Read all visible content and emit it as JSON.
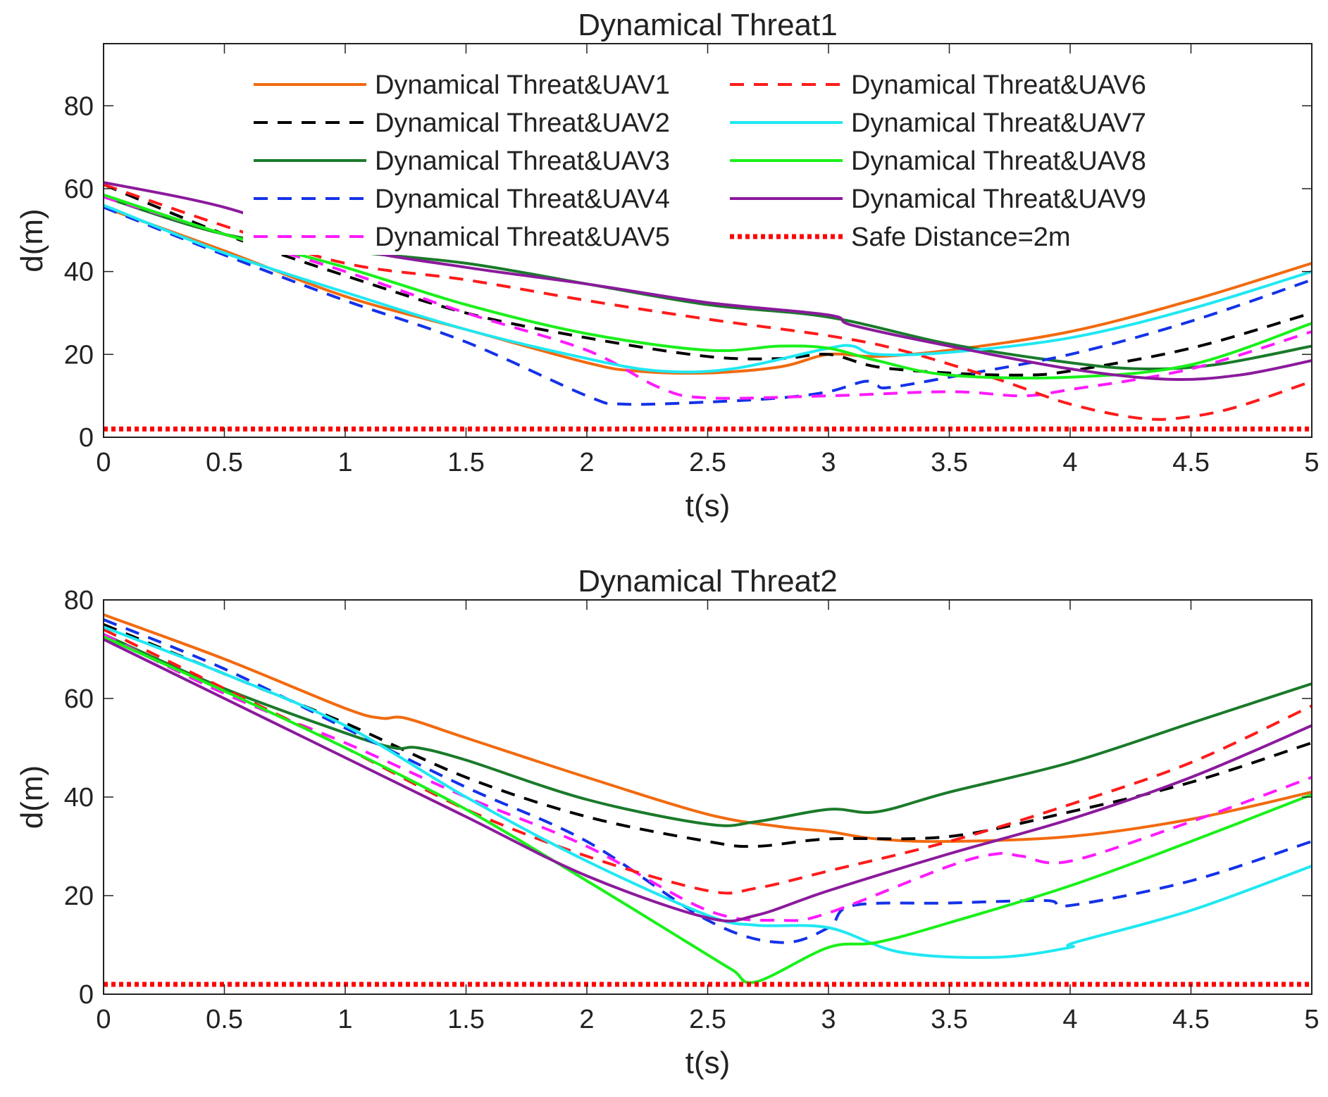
{
  "chart_data": [
    {
      "type": "line",
      "title": "Dynamical Threat1",
      "xlabel": "t(s)",
      "ylabel": "d(m)",
      "xlim": [
        0,
        5
      ],
      "ylim": [
        0,
        95
      ],
      "xticks": [
        0,
        0.5,
        1,
        1.5,
        2,
        2.5,
        3,
        3.5,
        4,
        4.5,
        5
      ],
      "xtick_labels": [
        "0",
        "0.5",
        "1",
        "1.5",
        "2",
        "2.5",
        "3",
        "3.5",
        "4",
        "4.5",
        "5"
      ],
      "yticks": [
        0,
        20,
        40,
        60,
        80
      ],
      "ytick_labels": [
        "0",
        "20",
        "40",
        "60",
        "80"
      ],
      "legend": {
        "location": "top-center",
        "columns": 2,
        "entries": [
          "Dynamical Threat&UAV1",
          "Dynamical Threat&UAV2",
          "Dynamical Threat&UAV3",
          "Dynamical Threat&UAV4",
          "Dynamical Threat&UAV5",
          "Dynamical Threat&UAV6",
          "Dynamical Threat&UAV7",
          "Dynamical Threat&UAV8",
          "Dynamical Threat&UAV9",
          "Safe Distance=2m"
        ]
      },
      "series": [
        {
          "name": "Dynamical Threat&UAV1",
          "color": "#f26a0f",
          "style": "solid",
          "x": [
            0,
            0.5,
            1,
            1.5,
            2,
            2.2,
            2.5,
            2.8,
            3.0,
            3.2,
            3.5,
            4.0,
            4.5,
            5
          ],
          "y": [
            55.5,
            45,
            34,
            26,
            18,
            16,
            15.5,
            17,
            20,
            19.5,
            21,
            25.5,
            33,
            42
          ]
        },
        {
          "name": "Dynamical Threat&UAV2",
          "color": "#000000",
          "style": "dashed",
          "x": [
            0,
            0.5,
            1,
            1.5,
            2,
            2.5,
            2.8,
            3.0,
            3.2,
            3.5,
            3.8,
            4.0,
            4.5,
            5
          ],
          "y": [
            61,
            49,
            39,
            30,
            24,
            19.5,
            19,
            20,
            17,
            15.5,
            15,
            16,
            21.5,
            30
          ]
        },
        {
          "name": "Dynamical Threat&UAV3",
          "color": "#1a7a2a",
          "style": "solid",
          "x": [
            0,
            0.5,
            1,
            1.5,
            2,
            2.5,
            3.0,
            3.5,
            4.0,
            4.3,
            4.6,
            5
          ],
          "y": [
            58,
            49,
            45,
            42,
            37,
            32,
            29,
            22.5,
            18,
            16.5,
            17.5,
            22
          ]
        },
        {
          "name": "Dynamical Threat&UAV4",
          "color": "#1432e8",
          "style": "dashed",
          "x": [
            0,
            0.5,
            1,
            1.5,
            2,
            2.15,
            2.5,
            2.8,
            3.0,
            3.15,
            3.2,
            3.25,
            3.5,
            4.0,
            4.5,
            5
          ],
          "y": [
            55.5,
            44,
            33,
            23,
            10,
            8,
            8.5,
            9.5,
            11,
            13.5,
            12.5,
            12,
            14.5,
            20,
            28,
            38
          ]
        },
        {
          "name": "Dynamical Threat&UAV5",
          "color": "#ff1aff",
          "style": "dashed",
          "x": [
            0,
            0.5,
            1,
            1.5,
            2,
            2.3,
            2.5,
            3.0,
            3.5,
            3.8,
            4.0,
            4.5,
            5
          ],
          "y": [
            58,
            49,
            40,
            30,
            21,
            12,
            9.5,
            10,
            11,
            10,
            11.5,
            16.5,
            25.5
          ]
        },
        {
          "name": "Dynamical Threat&UAV6",
          "color": "#ff1a1a",
          "style": "dashed",
          "x": [
            0,
            0.5,
            1,
            1.5,
            2,
            2.5,
            3.0,
            3.3,
            3.7,
            4.0,
            4.3,
            4.5,
            4.7,
            5
          ],
          "y": [
            61,
            51,
            42,
            38,
            33,
            28.5,
            24.5,
            21,
            14,
            8,
            4.5,
            5,
            7.5,
            13.5
          ]
        },
        {
          "name": "Dynamical Threat&UAV7",
          "color": "#1fe8f2",
          "style": "solid",
          "x": [
            0,
            0.5,
            1,
            1.5,
            2,
            2.3,
            2.6,
            3.0,
            3.1,
            3.2,
            3.5,
            4.0,
            4.5,
            5
          ],
          "y": [
            56,
            44.5,
            35,
            26,
            19,
            16,
            16.5,
            21.5,
            22,
            20,
            20.5,
            24,
            31,
            40
          ]
        },
        {
          "name": "Dynamical Threat&UAV8",
          "color": "#1af01a",
          "style": "solid",
          "x": [
            0,
            0.5,
            1,
            1.5,
            2,
            2.5,
            2.8,
            3.0,
            3.2,
            3.5,
            4.0,
            4.5,
            5
          ],
          "y": [
            58.5,
            49,
            41,
            32,
            25,
            21,
            22,
            21.5,
            18.5,
            15,
            14.5,
            17.5,
            27.5
          ]
        },
        {
          "name": "Dynamical Threat&UAV9",
          "color": "#8b1a9c",
          "style": "solid",
          "x": [
            0,
            0.5,
            1,
            1.5,
            2,
            2.5,
            3.0,
            3.1,
            3.5,
            4.0,
            4.4,
            4.7,
            5
          ],
          "y": [
            61.5,
            55.5,
            46,
            41,
            37,
            32.5,
            29.5,
            27,
            22,
            16.5,
            14,
            15,
            18.5
          ]
        },
        {
          "name": "Safe Distance=2m",
          "color": "#ff0000",
          "style": "dotted",
          "x": [
            0,
            5
          ],
          "y": [
            2,
            2
          ]
        }
      ]
    },
    {
      "type": "line",
      "title": "Dynamical Threat2",
      "xlabel": "t(s)",
      "ylabel": "d(m)",
      "xlim": [
        0,
        5
      ],
      "ylim": [
        0,
        80
      ],
      "xticks": [
        0,
        0.5,
        1,
        1.5,
        2,
        2.5,
        3,
        3.5,
        4,
        4.5,
        5
      ],
      "xtick_labels": [
        "0",
        "0.5",
        "1",
        "1.5",
        "2",
        "2.5",
        "3",
        "3.5",
        "4",
        "4.5",
        "5"
      ],
      "yticks": [
        0,
        20,
        40,
        60,
        80
      ],
      "ytick_labels": [
        "0",
        "20",
        "40",
        "60",
        "80"
      ],
      "series": [
        {
          "name": "Dynamical Threat&UAV1",
          "color": "#f26a0f",
          "style": "solid",
          "x": [
            0,
            0.5,
            1,
            1.15,
            1.25,
            1.5,
            2,
            2.5,
            2.8,
            3.0,
            3.2,
            3.5,
            4.0,
            4.5,
            5
          ],
          "y": [
            77,
            68,
            58,
            56,
            56,
            52,
            44,
            36.5,
            34,
            33,
            31.5,
            31,
            32,
            35.5,
            41
          ]
        },
        {
          "name": "Dynamical Threat&UAV2",
          "color": "#000000",
          "style": "dashed",
          "x": [
            0,
            0.5,
            1,
            1.5,
            2,
            2.5,
            2.7,
            3.0,
            3.5,
            4.0,
            4.5,
            5
          ],
          "y": [
            75,
            65,
            55,
            44,
            36,
            31,
            30,
            31.5,
            32,
            37,
            43,
            51
          ]
        },
        {
          "name": "Dynamical Threat&UAV3",
          "color": "#1a7a2a",
          "style": "solid",
          "x": [
            0,
            0.5,
            1,
            1.2,
            1.3,
            1.5,
            2,
            2.5,
            2.7,
            3.0,
            3.2,
            3.5,
            4.0,
            4.5,
            5
          ],
          "y": [
            73,
            62,
            53,
            50,
            50,
            47.5,
            39.5,
            34.5,
            35,
            37.5,
            37,
            41,
            47,
            55,
            63
          ]
        },
        {
          "name": "Dynamical Threat&UAV4",
          "color": "#1432e8",
          "style": "dashed",
          "x": [
            0,
            0.5,
            1,
            1.5,
            2,
            2.5,
            2.8,
            3.0,
            3.1,
            3.5,
            3.9,
            4.0,
            4.5,
            5
          ],
          "y": [
            76,
            66,
            54,
            42,
            31,
            15,
            10.5,
            13.5,
            18,
            18.5,
            19,
            18,
            23,
            31
          ]
        },
        {
          "name": "Dynamical Threat&UAV5",
          "color": "#ff1aff",
          "style": "dashed",
          "x": [
            0,
            0.5,
            1,
            1.5,
            2,
            2.5,
            2.8,
            3.0,
            3.5,
            3.7,
            3.8,
            4.0,
            4.5,
            5
          ],
          "y": [
            73,
            61,
            51,
            40,
            30,
            17,
            15,
            16.5,
            26,
            28.5,
            28,
            27,
            35,
            44
          ]
        },
        {
          "name": "Dynamical Threat&UAV6",
          "color": "#ff1a1a",
          "style": "dashed",
          "x": [
            0,
            0.5,
            1,
            1.5,
            2,
            2.5,
            2.7,
            3.0,
            3.5,
            4.0,
            4.5,
            5
          ],
          "y": [
            74,
            62,
            50,
            37.5,
            28,
            21,
            21.5,
            25,
            31,
            38.5,
            47,
            58.5
          ]
        },
        {
          "name": "Dynamical Threat&UAV7",
          "color": "#1fe8f2",
          "style": "solid",
          "x": [
            0,
            0.5,
            1,
            1.5,
            2,
            2.5,
            2.7,
            3.0,
            3.3,
            3.7,
            4.0,
            4.02,
            4.5,
            5
          ],
          "y": [
            74.5,
            65,
            54.5,
            40,
            27,
            16,
            14,
            13.5,
            8.5,
            7.5,
            9.5,
            10.5,
            17,
            26
          ]
        },
        {
          "name": "Dynamical Threat&UAV8",
          "color": "#1af01a",
          "style": "solid",
          "x": [
            0,
            0.5,
            1,
            1.5,
            2,
            2.4,
            2.6,
            2.7,
            3.0,
            3.2,
            3.5,
            4.0,
            4.5,
            5
          ],
          "y": [
            72.5,
            61.5,
            50,
            37.5,
            23,
            11,
            5,
            2.5,
            9.5,
            10.5,
            14.5,
            22,
            31,
            40.5
          ]
        },
        {
          "name": "Dynamical Threat&UAV9",
          "color": "#8b1a9c",
          "style": "solid",
          "x": [
            0,
            0.5,
            1,
            1.5,
            2,
            2.5,
            2.7,
            3.0,
            3.5,
            4.0,
            4.5,
            5
          ],
          "y": [
            72,
            60,
            48,
            36,
            24,
            15.5,
            16,
            21,
            28.5,
            35.5,
            44,
            54.5
          ]
        },
        {
          "name": "Safe Distance=2m",
          "color": "#ff0000",
          "style": "dotted",
          "x": [
            0,
            5
          ],
          "y": [
            2,
            2
          ]
        }
      ]
    }
  ]
}
